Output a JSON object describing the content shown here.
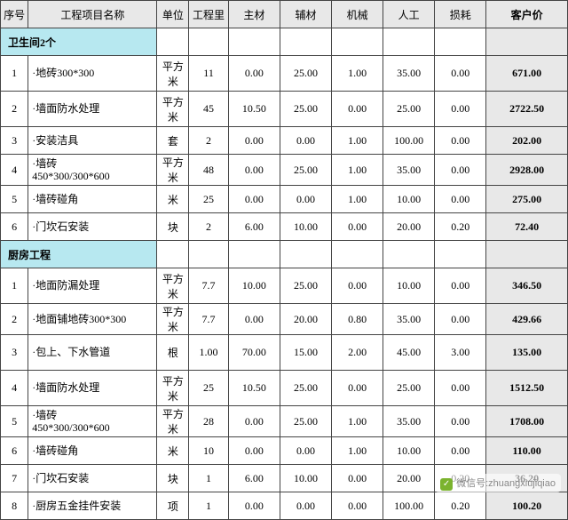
{
  "columns": [
    "序号",
    "工程项目名称",
    "单位",
    "工程里",
    "主材",
    "辅材",
    "机械",
    "人工",
    "损耗",
    "客户价"
  ],
  "sections": [
    {
      "title": "卫生间2个",
      "rows": [
        {
          "idx": "1",
          "name": "·地砖300*300",
          "unit": "平方米",
          "qty": "11",
          "v": [
            "0.00",
            "25.00",
            "1.00",
            "35.00",
            "0.00"
          ],
          "cp": "671.00",
          "tall": true
        },
        {
          "idx": "2",
          "name": "·墙面防水处理",
          "unit": "平方米",
          "qty": "45",
          "v": [
            "10.50",
            "25.00",
            "0.00",
            "25.00",
            "0.00"
          ],
          "cp": "2722.50",
          "tall": true
        },
        {
          "idx": "3",
          "name": "·安装洁具",
          "unit": "套",
          "qty": "2",
          "v": [
            "0.00",
            "0.00",
            "1.00",
            "100.00",
            "0.00"
          ],
          "cp": "202.00"
        },
        {
          "idx": "4",
          "name": "·墙砖<br>450*300/300*600",
          "unit": "平方米",
          "qty": "48",
          "v": [
            "0.00",
            "25.00",
            "1.00",
            "35.00",
            "0.00"
          ],
          "cp": "2928.00"
        },
        {
          "idx": "5",
          "name": "·墙砖碰角",
          "unit": "米",
          "qty": "25",
          "v": [
            "0.00",
            "0.00",
            "1.00",
            "10.00",
            "0.00"
          ],
          "cp": "275.00"
        },
        {
          "idx": "6",
          "name": "·门坎石安装",
          "unit": "块",
          "qty": "2",
          "v": [
            "6.00",
            "10.00",
            "0.00",
            "20.00",
            "0.20"
          ],
          "cp": "72.40"
        }
      ]
    },
    {
      "title": "厨房工程",
      "rows": [
        {
          "idx": "1",
          "name": "·地面防漏处理",
          "unit": "平方米",
          "qty": "7.7",
          "v": [
            "10.00",
            "25.00",
            "0.00",
            "10.00",
            "0.00"
          ],
          "cp": "346.50",
          "tall": true
        },
        {
          "idx": "2",
          "name": "·地面铺地砖300*300",
          "unit": "平方米",
          "qty": "7.7",
          "v": [
            "0.00",
            "20.00",
            "0.80",
            "35.00",
            "0.00"
          ],
          "cp": "429.66"
        },
        {
          "idx": "3",
          "name": "·包上、下水管道",
          "unit": "根",
          "qty": "1.00",
          "v": [
            "70.00",
            "15.00",
            "2.00",
            "45.00",
            "3.00"
          ],
          "cp": "135.00",
          "tall": true
        },
        {
          "idx": "4",
          "name": "·墙面防水处理",
          "unit": "平方米",
          "qty": "25",
          "v": [
            "10.50",
            "25.00",
            "0.00",
            "25.00",
            "0.00"
          ],
          "cp": "1512.50",
          "tall": true
        },
        {
          "idx": "5",
          "name": "·墙砖<br>450*300/300*600",
          "unit": "平方米",
          "qty": "28",
          "v": [
            "0.00",
            "25.00",
            "1.00",
            "35.00",
            "0.00"
          ],
          "cp": "1708.00"
        },
        {
          "idx": "6",
          "name": "·墙砖碰角",
          "unit": "米",
          "qty": "10",
          "v": [
            "0.00",
            "0.00",
            "1.00",
            "10.00",
            "0.00"
          ],
          "cp": "110.00"
        },
        {
          "idx": "7",
          "name": "·门坎石安装",
          "unit": "块",
          "qty": "1",
          "v": [
            "6.00",
            "10.00",
            "0.00",
            "20.00",
            "0.20"
          ],
          "cp": "36.20"
        },
        {
          "idx": "8",
          "name": "·厨房五金挂件安装",
          "unit": "项",
          "qty": "1",
          "v": [
            "0.00",
            "0.00",
            "0.00",
            "100.00",
            "0.20"
          ],
          "cp": "100.20"
        }
      ]
    }
  ],
  "watermark": {
    "label": "微信号:",
    "id": "zhuangxiujiqiao"
  }
}
